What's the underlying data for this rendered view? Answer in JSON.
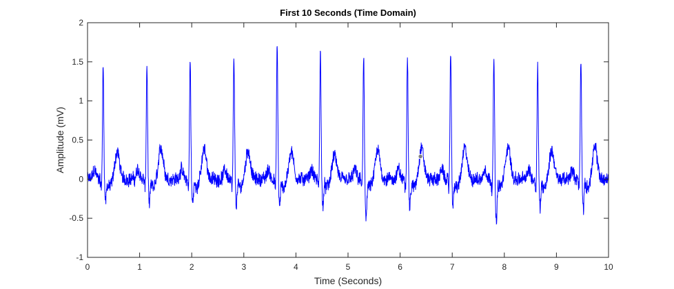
{
  "chart_data": {
    "type": "line",
    "title": "First 10 Seconds (Time Domain)",
    "xlabel": "Time (Seconds)",
    "ylabel": "Amplitude (mV)",
    "xlim": [
      0,
      10
    ],
    "ylim": [
      -1,
      2
    ],
    "x_ticks": [
      0,
      1,
      2,
      3,
      4,
      5,
      6,
      7,
      8,
      9,
      10
    ],
    "x_tick_labels": [
      "0",
      "1",
      "2",
      "3",
      "4",
      "5",
      "6",
      "7",
      "8",
      "9",
      "10"
    ],
    "y_ticks": [
      -1,
      -0.5,
      0,
      0.5,
      1,
      1.5,
      2
    ],
    "y_tick_labels": [
      "-1",
      "-0.5",
      "0",
      "0.5",
      "1",
      "1.5",
      "2"
    ],
    "grid": false,
    "series": [
      {
        "color": "#0000ff",
        "sampling_rate_hz": 250,
        "baseline_noise_mV": 0.07,
        "beats": [
          {
            "r_time": 0.3,
            "r_peak": 1.45,
            "s_trough": -0.25,
            "t_peak": 0.35
          },
          {
            "r_time": 1.14,
            "r_peak": 1.47,
            "s_trough": -0.3,
            "t_peak": 0.4
          },
          {
            "r_time": 1.97,
            "r_peak": 1.52,
            "s_trough": -0.28,
            "t_peak": 0.38
          },
          {
            "r_time": 2.81,
            "r_peak": 1.55,
            "s_trough": -0.3,
            "t_peak": 0.37
          },
          {
            "r_time": 3.64,
            "r_peak": 1.72,
            "s_trough": -0.33,
            "t_peak": 0.35
          },
          {
            "r_time": 4.47,
            "r_peak": 1.67,
            "s_trough": -0.3,
            "t_peak": 0.3
          },
          {
            "r_time": 5.3,
            "r_peak": 1.57,
            "s_trough": -0.47,
            "t_peak": 0.36
          },
          {
            "r_time": 6.14,
            "r_peak": 1.61,
            "s_trough": -0.35,
            "t_peak": 0.4
          },
          {
            "r_time": 6.97,
            "r_peak": 1.64,
            "s_trough": -0.3,
            "t_peak": 0.4
          },
          {
            "r_time": 7.8,
            "r_peak": 1.56,
            "s_trough": -0.54,
            "t_peak": 0.42
          },
          {
            "r_time": 8.64,
            "r_peak": 1.47,
            "s_trough": -0.33,
            "t_peak": 0.37
          },
          {
            "r_time": 9.47,
            "r_peak": 1.55,
            "s_trough": -0.35,
            "t_peak": 0.4
          }
        ]
      }
    ],
    "marker": {
      "x": 6.39,
      "y": 0.29,
      "color": "#808080"
    }
  }
}
